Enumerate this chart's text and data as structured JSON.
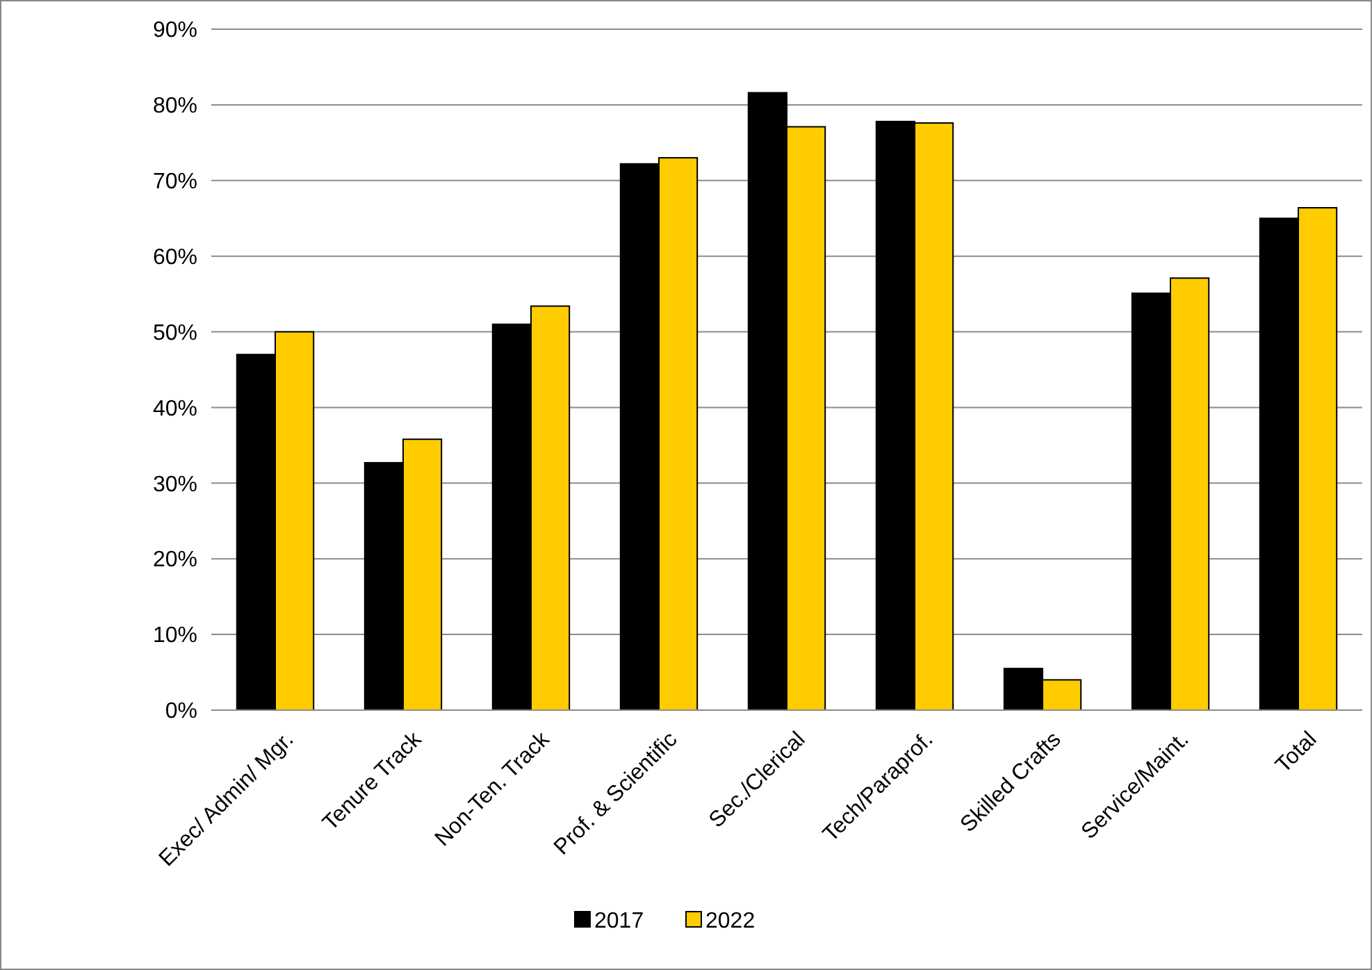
{
  "chart_data": {
    "type": "bar",
    "categories": [
      "Exec/ Admin/ Mgr.",
      "Tenure Track",
      "Non-Ten. Track",
      "Prof. & Scientific",
      "Sec./Clerical",
      "Tech/Paraprof.",
      "Skilled Crafts",
      "Service/Maint.",
      "Total"
    ],
    "series": [
      {
        "name": "2017",
        "color": "#000000",
        "values": [
          0.47,
          0.327,
          0.51,
          0.722,
          0.816,
          0.778,
          0.055,
          0.551,
          0.65
        ]
      },
      {
        "name": "2022",
        "color": "#ffcc00",
        "values": [
          0.5,
          0.358,
          0.534,
          0.73,
          0.771,
          0.776,
          0.04,
          0.571,
          0.664
        ]
      }
    ],
    "ylim": [
      0,
      0.9
    ],
    "yticks": [
      {
        "value": 0,
        "label": "0%"
      },
      {
        "value": 0.1,
        "label": "10%"
      },
      {
        "value": 0.2,
        "label": "20%"
      },
      {
        "value": 0.3,
        "label": "30%"
      },
      {
        "value": 0.4,
        "label": "40%"
      },
      {
        "value": 0.5,
        "label": "50%"
      },
      {
        "value": 0.6,
        "label": "60%"
      },
      {
        "value": 0.7,
        "label": "70%"
      },
      {
        "value": 0.8,
        "label": "80%"
      },
      {
        "value": 0.9,
        "label": "90%"
      }
    ],
    "grid": "y",
    "legend": "bottom"
  }
}
